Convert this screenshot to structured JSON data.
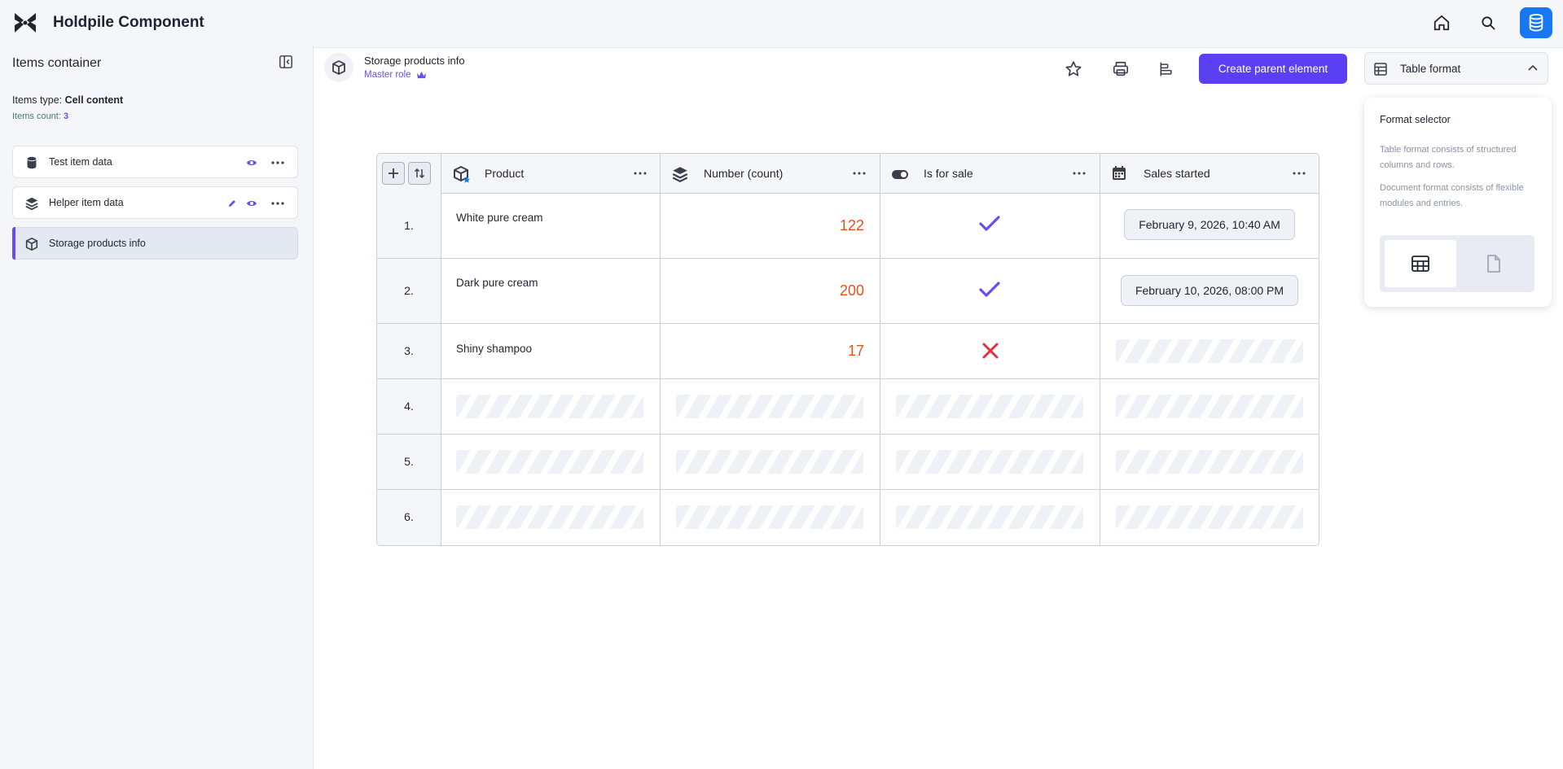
{
  "app": {
    "title": "Holdpile Component"
  },
  "sidebar": {
    "title": "Items container",
    "items_type_label": "Items type:",
    "items_type_value": "Cell content",
    "items_count_label": "Items count:",
    "items_count_value": "3",
    "items": [
      {
        "label": "Test item data",
        "icon": "database-icon",
        "active": false
      },
      {
        "label": "Helper item data",
        "icon": "layers-icon",
        "active": false
      },
      {
        "label": "Storage products info",
        "icon": "box-icon",
        "active": true
      }
    ]
  },
  "header": {
    "title": "Storage products info",
    "role": "Master role",
    "create_button": "Create parent element",
    "format_select": "Table format"
  },
  "table": {
    "columns": [
      {
        "label": "Product",
        "icon": "box-star-icon"
      },
      {
        "label": "Number (count)",
        "icon": "layers-icon"
      },
      {
        "label": "Is for sale",
        "icon": "toggle-icon"
      },
      {
        "label": "Sales started",
        "icon": "calendar-icon"
      }
    ],
    "rows": [
      {
        "index": "1.",
        "product": "White pure cream",
        "count": "122",
        "for_sale": "yes",
        "sales_started": "February 9, 2026, 10:40 AM"
      },
      {
        "index": "2.",
        "product": "Dark pure cream",
        "count": "200",
        "for_sale": "yes",
        "sales_started": "February 10, 2026, 08:00 PM"
      },
      {
        "index": "3.",
        "product": "Shiny shampoo",
        "count": "17",
        "for_sale": "no",
        "sales_started": ""
      },
      {
        "index": "4.",
        "product": "",
        "count": "",
        "for_sale": "",
        "sales_started": ""
      },
      {
        "index": "5.",
        "product": "",
        "count": "",
        "for_sale": "",
        "sales_started": ""
      },
      {
        "index": "6.",
        "product": "",
        "count": "",
        "for_sale": "",
        "sales_started": ""
      }
    ]
  },
  "format_popover": {
    "title": "Format selector",
    "table_desc": "Table format consists of structured columns and rows.",
    "document_desc": "Document format consists of flexible modules and entries.",
    "options": [
      {
        "icon": "table-grid-icon",
        "selected": true
      },
      {
        "icon": "document-icon",
        "selected": false
      }
    ]
  },
  "colors": {
    "accent": "#5b3ff2",
    "primary_blue": "#1877f2",
    "number_orange": "#e5501c",
    "check_purple": "#6a4cf0",
    "cross_red": "#e5303a"
  }
}
